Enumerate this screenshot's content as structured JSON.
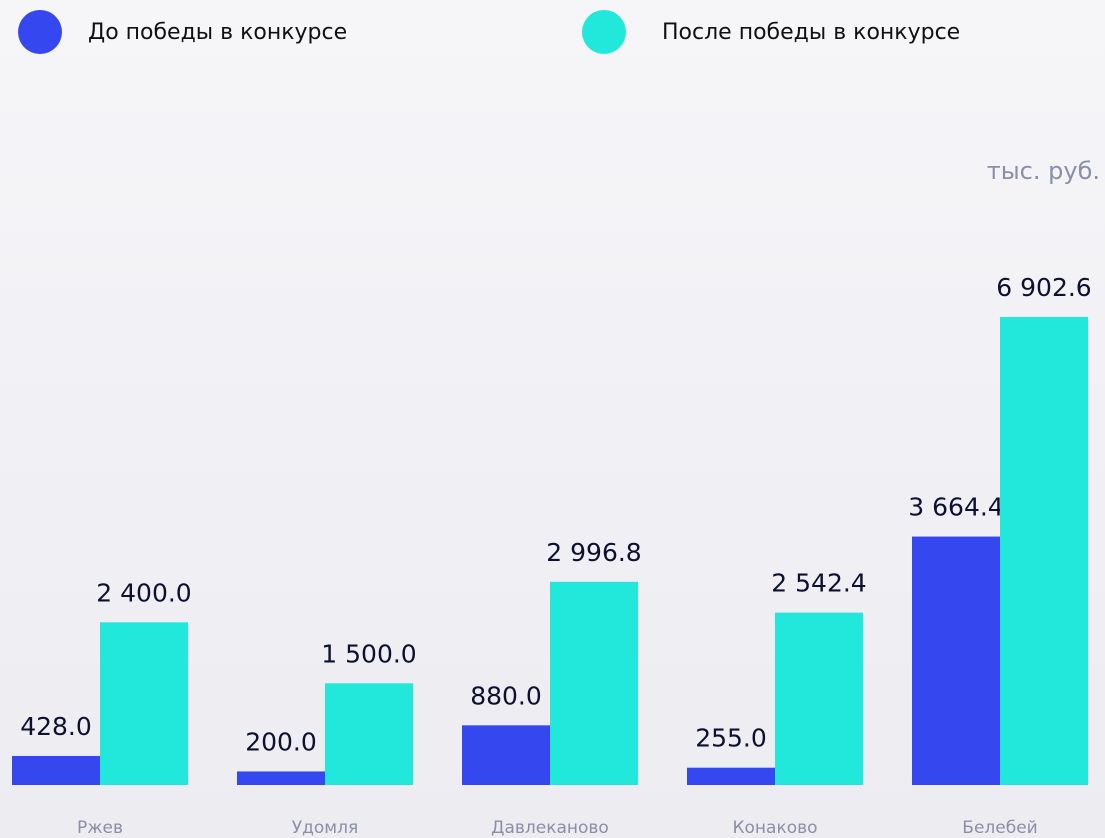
{
  "chart_data": {
    "type": "bar",
    "unit": "тыс. руб.",
    "categories": [
      "Ржев",
      "Удомля",
      "Давлеканово",
      "Конаково",
      "Белебей"
    ],
    "series": [
      {
        "name": "До победы в конкурсе",
        "color": "#3548f0",
        "values": [
          428,
          200,
          880,
          255,
          3664.4
        ],
        "value_labels": [
          "428.0",
          "200.0",
          "880.0",
          "255.0",
          "3 664.4"
        ]
      },
      {
        "name": "После победы в конкурсе",
        "color": "#22e8dc",
        "values": [
          2400,
          1500,
          2996.8,
          2542.4,
          6902.6
        ],
        "value_labels": [
          "2 400.0",
          "1 500.0",
          "2 996.8",
          "2 542.4",
          "6 902.6"
        ]
      }
    ]
  }
}
